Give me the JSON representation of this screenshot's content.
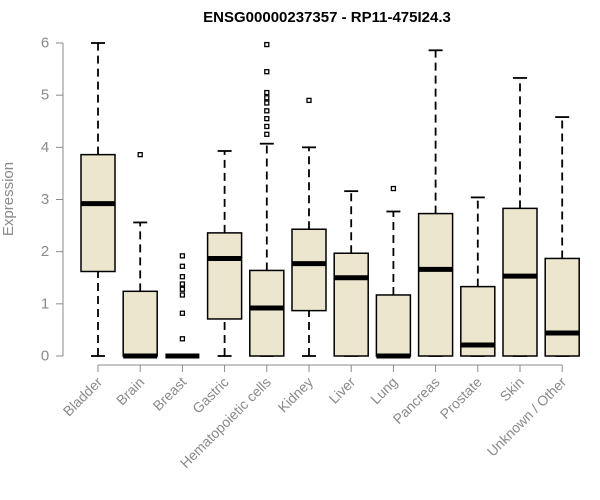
{
  "chart_data": {
    "type": "boxplot",
    "title": "ENSG00000237357 - RP11-475I24.3",
    "xlabel": "",
    "ylabel": "Expression",
    "ylim": [
      0,
      6
    ],
    "yticks": [
      0,
      1,
      2,
      3,
      4,
      5,
      6
    ],
    "box_color": "#ede6cf",
    "categories": [
      "Bladder",
      "Brain",
      "Breast",
      "Gastric",
      "Hematopoietic cells",
      "Kidney",
      "Liver",
      "Lung",
      "Pancreas",
      "Prostate",
      "Skin",
      "Unknown / Other"
    ],
    "series": [
      {
        "category": "Bladder",
        "min": 0,
        "q1": 1.62,
        "median": 2.92,
        "q3": 3.86,
        "max": 6.0,
        "outliers": []
      },
      {
        "category": "Brain",
        "min": 0,
        "q1": 0,
        "median": 0,
        "q3": 1.24,
        "max": 2.56,
        "outliers": [
          3.86
        ]
      },
      {
        "category": "Breast",
        "min": 0,
        "q1": 0,
        "median": 0,
        "q3": 0,
        "max": 0,
        "outliers": [
          0.33,
          0.82,
          1.17,
          1.28,
          1.38,
          1.52,
          1.72,
          1.92
        ]
      },
      {
        "category": "Gastric",
        "min": 0,
        "q1": 0.71,
        "median": 1.87,
        "q3": 2.36,
        "max": 3.93,
        "outliers": []
      },
      {
        "category": "Hematopoietic cells",
        "min": 0,
        "q1": 0,
        "median": 0.92,
        "q3": 1.64,
        "max": 4.07,
        "outliers": [
          4.25,
          4.4,
          4.55,
          4.7,
          4.85,
          4.95,
          5.05,
          5.45,
          5.97
        ]
      },
      {
        "category": "Kidney",
        "min": 0,
        "q1": 0.87,
        "median": 1.77,
        "q3": 2.43,
        "max": 4.0,
        "outliers": [
          4.9
        ]
      },
      {
        "category": "Liver",
        "min": 0,
        "q1": 0,
        "median": 1.5,
        "q3": 1.97,
        "max": 3.16,
        "outliers": []
      },
      {
        "category": "Lung",
        "min": 0,
        "q1": 0,
        "median": 0,
        "q3": 1.17,
        "max": 2.77,
        "outliers": [
          3.21
        ]
      },
      {
        "category": "Pancreas",
        "min": 0,
        "q1": 0,
        "median": 1.66,
        "q3": 2.73,
        "max": 5.86,
        "outliers": []
      },
      {
        "category": "Prostate",
        "min": 0,
        "q1": 0,
        "median": 0.21,
        "q3": 1.33,
        "max": 3.04,
        "outliers": []
      },
      {
        "category": "Skin",
        "min": 0,
        "q1": 0,
        "median": 1.53,
        "q3": 2.83,
        "max": 5.33,
        "outliers": []
      },
      {
        "category": "Unknown / Other",
        "min": 0,
        "q1": 0,
        "median": 0.44,
        "q3": 1.87,
        "max": 4.58,
        "outliers": []
      }
    ],
    "grid": false,
    "legend": "none"
  }
}
